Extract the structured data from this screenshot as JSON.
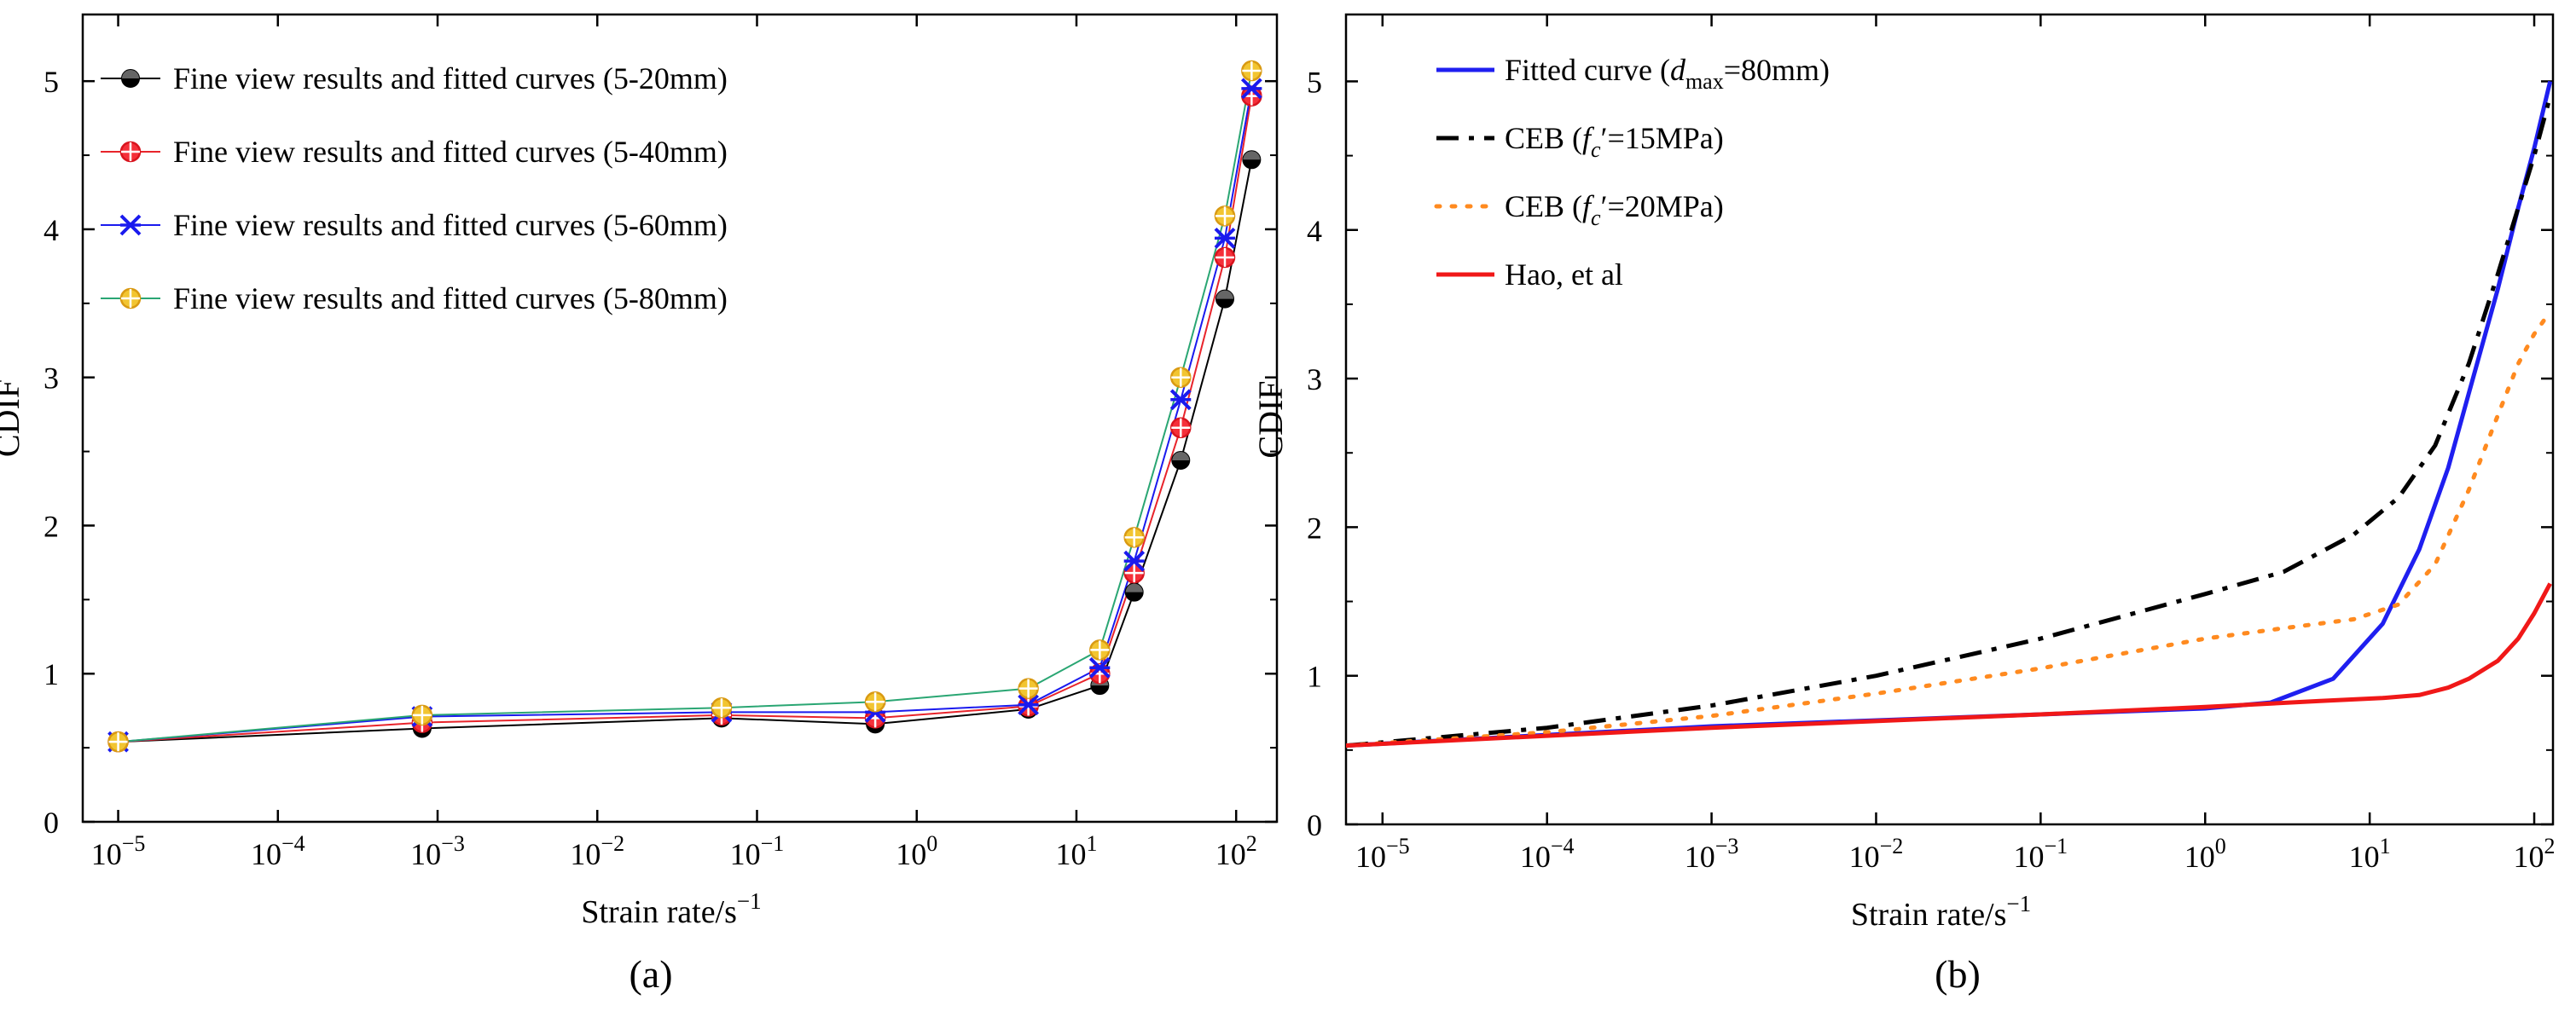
{
  "chart_data": [
    {
      "id": "a",
      "type": "line",
      "panel_label": "(a)",
      "xlabel": "Strain rate/s",
      "xlabel_sup": "−1",
      "ylabel": "CDIF",
      "x_scale": "log",
      "xlim": [
        6e-06,
        180
      ],
      "ylim": [
        0,
        5.45
      ],
      "x_ticks": [
        {
          "value": 1e-05,
          "base": "10",
          "exp": "−5"
        },
        {
          "value": 0.0001,
          "base": "10",
          "exp": "−4"
        },
        {
          "value": 0.001,
          "base": "10",
          "exp": "−3"
        },
        {
          "value": 0.01,
          "base": "10",
          "exp": "−2"
        },
        {
          "value": 0.1,
          "base": "10",
          "exp": "−1"
        },
        {
          "value": 1,
          "base": "10",
          "exp": "0"
        },
        {
          "value": 10,
          "base": "10",
          "exp": "1"
        },
        {
          "value": 100,
          "base": "10",
          "exp": "2"
        }
      ],
      "y_ticks": [
        {
          "value": 0,
          "label": "0"
        },
        {
          "value": 1,
          "label": "1"
        },
        {
          "value": 2,
          "label": "2"
        },
        {
          "value": 3,
          "label": "3"
        },
        {
          "value": 4,
          "label": "4"
        },
        {
          "value": 5,
          "label": "5"
        }
      ],
      "legend_position": "top-left",
      "series": [
        {
          "name": "Fine view results and fitted curves (5-20mm)",
          "color": "#000000",
          "marker": "circle-half",
          "x": [
            1e-05,
            0.0008,
            0.06,
            0.55,
            5,
            14,
            23,
            45,
            85,
            125
          ],
          "y": [
            0.54,
            0.63,
            0.7,
            0.66,
            0.76,
            0.92,
            1.55,
            2.44,
            3.53,
            4.47
          ]
        },
        {
          "name": "Fine view results and fitted curves (5-40mm)",
          "color": "#e8242b",
          "marker": "crossed-circle",
          "x": [
            1e-05,
            0.0008,
            0.06,
            0.55,
            5,
            14,
            23,
            45,
            85,
            125
          ],
          "y": [
            0.54,
            0.67,
            0.72,
            0.7,
            0.78,
            1.0,
            1.68,
            2.66,
            3.81,
            4.9
          ]
        },
        {
          "name": "Fine view results and fitted curves (5-60mm)",
          "color": "#1a1aee",
          "marker": "x-star",
          "x": [
            1e-05,
            0.0008,
            0.06,
            0.55,
            5,
            14,
            23,
            45,
            85,
            125
          ],
          "y": [
            0.54,
            0.71,
            0.74,
            0.74,
            0.79,
            1.04,
            1.76,
            2.85,
            3.94,
            4.95
          ]
        },
        {
          "name": "Fine view results and fitted curves (5-80mm)",
          "color": "#2aa673",
          "marker": "crossed-circle-gold",
          "x": [
            1e-05,
            0.0008,
            0.06,
            0.55,
            5,
            14,
            23,
            45,
            85,
            125
          ],
          "y": [
            0.54,
            0.72,
            0.77,
            0.81,
            0.9,
            1.16,
            1.92,
            3.0,
            4.09,
            5.07
          ]
        }
      ]
    },
    {
      "id": "b",
      "type": "line",
      "panel_label": "(b)",
      "xlabel": "Strain rate/s",
      "xlabel_sup": "−1",
      "ylabel": "CDIF",
      "x_scale": "log",
      "xlim": [
        6e-06,
        130
      ],
      "ylim": [
        0,
        5.45
      ],
      "x_ticks": [
        {
          "value": 1e-05,
          "base": "10",
          "exp": "−5"
        },
        {
          "value": 0.0001,
          "base": "10",
          "exp": "−4"
        },
        {
          "value": 0.001,
          "base": "10",
          "exp": "−3"
        },
        {
          "value": 0.01,
          "base": "10",
          "exp": "−2"
        },
        {
          "value": 0.1,
          "base": "10",
          "exp": "−1"
        },
        {
          "value": 1,
          "base": "10",
          "exp": "0"
        },
        {
          "value": 10,
          "base": "10",
          "exp": "1"
        },
        {
          "value": 100,
          "base": "10",
          "exp": "2"
        }
      ],
      "y_ticks": [
        {
          "value": 0,
          "label": "0"
        },
        {
          "value": 1,
          "label": "1"
        },
        {
          "value": 2,
          "label": "2"
        },
        {
          "value": 3,
          "label": "3"
        },
        {
          "value": 4,
          "label": "4"
        },
        {
          "value": 5,
          "label": "5"
        }
      ],
      "legend_position": "top-left",
      "series": [
        {
          "name": "Fitted curve",
          "legend_parts": [
            "Fitted curve (",
            "d",
            "max",
            "=80mm)"
          ],
          "color": "#1f1ff0",
          "style": "solid",
          "x": [
            6e-06,
            0.001,
            0.1,
            1,
            2.5,
            6,
            12,
            20,
            30,
            40,
            60,
            80,
            100,
            125
          ],
          "y": [
            0.53,
            0.66,
            0.74,
            0.78,
            0.82,
            0.98,
            1.35,
            1.85,
            2.4,
            2.9,
            3.6,
            4.15,
            4.55,
            5.0
          ]
        },
        {
          "name": "CEB (fc'=15MPa)",
          "legend_parts": [
            "CEB (",
            "f",
            "c",
            "′=15MPa)"
          ],
          "color": "#000000",
          "style": "dashdot",
          "x": [
            6e-06,
            0.0001,
            0.001,
            0.01,
            0.1,
            1,
            3,
            8,
            15,
            25,
            40,
            60,
            80,
            100,
            125
          ],
          "y": [
            0.53,
            0.65,
            0.8,
            1.0,
            1.25,
            1.55,
            1.7,
            1.95,
            2.2,
            2.55,
            3.1,
            3.7,
            4.15,
            4.5,
            4.9
          ]
        },
        {
          "name": "CEB (fc'=20MPa)",
          "legend_parts": [
            "CEB (",
            "f",
            "c",
            "′=20MPa)"
          ],
          "color": "#ff8a1f",
          "style": "dotted",
          "x": [
            6e-06,
            0.0001,
            0.001,
            0.01,
            0.1,
            1,
            3,
            8,
            15,
            25,
            40,
            60,
            80,
            100,
            125
          ],
          "y": [
            0.53,
            0.62,
            0.73,
            0.88,
            1.05,
            1.25,
            1.32,
            1.38,
            1.48,
            1.75,
            2.25,
            2.75,
            3.1,
            3.3,
            3.45
          ]
        },
        {
          "name": "Hao, et al",
          "legend_parts": [
            "Hao, et al",
            "",
            "",
            ""
          ],
          "color": "#f01818",
          "style": "solid",
          "x": [
            6e-06,
            0.001,
            0.1,
            1,
            5,
            12,
            20,
            30,
            40,
            60,
            80,
            100,
            125
          ],
          "y": [
            0.53,
            0.65,
            0.74,
            0.79,
            0.83,
            0.85,
            0.87,
            0.92,
            0.98,
            1.1,
            1.25,
            1.42,
            1.62
          ]
        }
      ]
    }
  ]
}
